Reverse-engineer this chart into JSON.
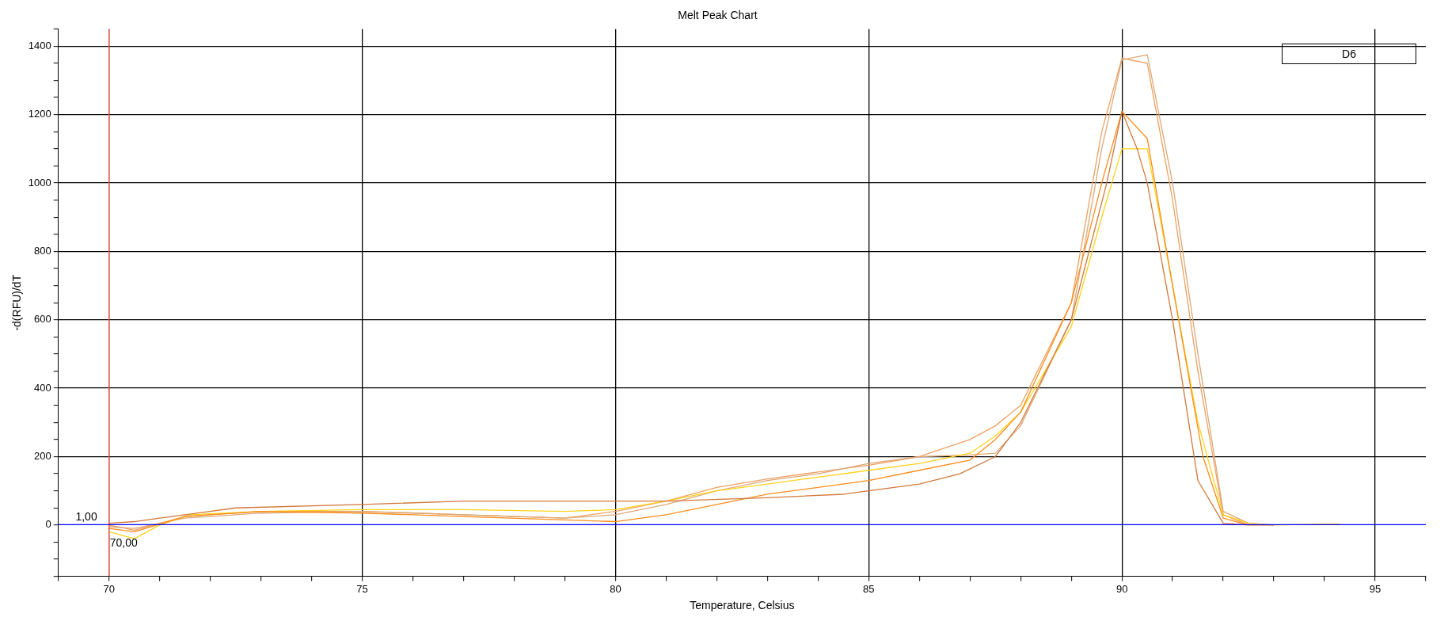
{
  "chart_data": {
    "type": "line",
    "title": "Melt Peak Chart",
    "xlabel": "Temperature, Celsius",
    "ylabel": "-d(RFU)/dT",
    "annotations": [
      "D6"
    ],
    "xlim": [
      69,
      96
    ],
    "xticks": [
      {
        "value": 69,
        "label": null
      },
      70,
      {
        "value": 71,
        "label": null
      },
      {
        "value": 72,
        "label": null
      },
      {
        "value": 73,
        "label": null
      },
      {
        "value": 74,
        "label": null
      },
      75,
      {
        "value": 76,
        "label": null
      },
      {
        "value": 77,
        "label": null
      },
      {
        "value": 78,
        "label": null
      },
      {
        "value": 79,
        "label": null
      },
      80,
      {
        "value": 81,
        "label": null
      },
      {
        "value": 82,
        "label": null
      },
      {
        "value": 83,
        "label": null
      },
      {
        "value": 84,
        "label": null
      },
      85,
      {
        "value": 86,
        "label": null
      },
      {
        "value": 87,
        "label": null
      },
      {
        "value": 88,
        "label": null
      },
      {
        "value": 89,
        "label": null
      },
      90,
      {
        "value": 91,
        "label": null
      },
      {
        "value": 92,
        "label": null
      },
      {
        "value": 93,
        "label": null
      },
      {
        "value": 94,
        "label": null
      },
      95,
      {
        "value": 96,
        "label": null
      }
    ],
    "ylim": [
      -150,
      1450
    ],
    "yticks": [
      {
        "value": -150,
        "label": null
      },
      {
        "value": -100,
        "label": null
      },
      {
        "value": -50,
        "label": null
      },
      0,
      {
        "value": 50,
        "label": null
      },
      {
        "value": 100,
        "label": null
      },
      {
        "value": 150,
        "label": null
      },
      200,
      {
        "value": 250,
        "label": null
      },
      {
        "value": 300,
        "label": null
      },
      {
        "value": 350,
        "label": null
      },
      400,
      {
        "value": 450,
        "label": null
      },
      {
        "value": 500,
        "label": null
      },
      {
        "value": 550,
        "label": null
      },
      600,
      {
        "value": 650,
        "label": null
      },
      {
        "value": 700,
        "label": null
      },
      {
        "value": 750,
        "label": null
      },
      800,
      {
        "value": 850,
        "label": null
      },
      {
        "value": 900,
        "label": null
      },
      {
        "value": 950,
        "label": null
      },
      1000,
      {
        "value": 1050,
        "label": null
      },
      {
        "value": 1100,
        "label": null
      },
      {
        "value": 1150,
        "label": null
      },
      1200,
      {
        "value": 1250,
        "label": null
      },
      {
        "value": 1300,
        "label": null
      },
      {
        "value": 1350,
        "label": null
      },
      1400,
      {
        "value": 1450,
        "label": null
      }
    ],
    "grid": true,
    "legend": false,
    "marker": "none",
    "line_style": "solid",
    "ref_lines": [
      {
        "axis": "x",
        "value": 70,
        "label": "70,00",
        "color": "#ff5a4a"
      },
      {
        "axis": "y",
        "value": 1,
        "label": "1,00",
        "color": "#0000ff"
      }
    ],
    "series": [
      {
        "color": "#d2783a",
        "x": [
          70,
          70.5,
          71,
          71.5,
          72.5,
          75,
          77,
          80,
          81,
          83,
          84.5,
          85,
          86,
          86.8,
          87.5,
          88,
          89,
          89.7,
          90,
          90.3,
          90.5,
          91,
          91.5,
          92,
          92.5,
          93
        ],
        "values": [
          5,
          10,
          20,
          30,
          50,
          60,
          70,
          70,
          70,
          80,
          90,
          100,
          120,
          150,
          200,
          300,
          600,
          1000,
          1210,
          1100,
          1000,
          600,
          130,
          5,
          0,
          0
        ]
      },
      {
        "color": "#ff8c1a",
        "x": [
          70,
          70.5,
          71.5,
          73,
          75,
          77,
          79,
          80,
          81,
          82,
          83,
          84,
          85,
          86,
          87,
          87.5,
          88,
          89,
          89.6,
          90,
          90.5,
          91,
          91.6,
          92,
          92.5
        ],
        "values": [
          -10,
          -20,
          25,
          40,
          35,
          25,
          15,
          10,
          30,
          60,
          90,
          110,
          130,
          160,
          190,
          250,
          330,
          650,
          1000,
          1210,
          1130,
          700,
          200,
          20,
          0
        ]
      },
      {
        "color": "#ffd21a",
        "x": [
          70,
          70.5,
          71,
          71.6,
          73,
          75,
          77,
          79,
          80,
          81,
          82,
          83,
          84,
          85,
          86,
          87,
          87.5,
          88,
          89,
          89.6,
          90,
          90.5,
          91,
          91.5,
          92,
          92.5,
          93,
          94,
          94.3
        ],
        "values": [
          -20,
          -40,
          0,
          30,
          40,
          45,
          45,
          40,
          45,
          70,
          100,
          120,
          140,
          160,
          180,
          210,
          260,
          330,
          580,
          900,
          1100,
          1100,
          700,
          300,
          30,
          5,
          0,
          3,
          3
        ]
      },
      {
        "color": "#dca878",
        "x": [
          70,
          70.5,
          71.5,
          73,
          75,
          77,
          79,
          80,
          81,
          82,
          83,
          84,
          85,
          86,
          87,
          87.5,
          88,
          89,
          89.6,
          90,
          90.5,
          91,
          91.5,
          92,
          92.5,
          93
        ],
        "values": [
          -5,
          -10,
          20,
          35,
          40,
          30,
          20,
          30,
          60,
          100,
          130,
          150,
          180,
          200,
          205,
          210,
          290,
          600,
          1100,
          1360,
          1375,
          1000,
          500,
          40,
          5,
          0
        ]
      },
      {
        "color": "#f0a060",
        "x": [
          70,
          70.5,
          71.5,
          73,
          75,
          77,
          79,
          80,
          81,
          82,
          83,
          84,
          85,
          86,
          87,
          87.5,
          88,
          89,
          89.6,
          90,
          90.5,
          91,
          91.5,
          92,
          92.5
        ],
        "values": [
          0,
          -15,
          25,
          40,
          40,
          30,
          20,
          40,
          70,
          110,
          135,
          155,
          175,
          200,
          250,
          290,
          350,
          650,
          1150,
          1365,
          1350,
          950,
          450,
          30,
          0
        ]
      }
    ]
  }
}
